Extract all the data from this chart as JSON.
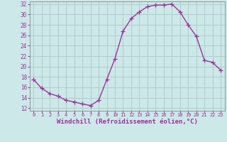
{
  "x": [
    0,
    1,
    2,
    3,
    4,
    5,
    6,
    7,
    8,
    9,
    10,
    11,
    12,
    13,
    14,
    15,
    16,
    17,
    18,
    19,
    20,
    21,
    22,
    23
  ],
  "y": [
    17.5,
    15.8,
    14.8,
    14.3,
    13.5,
    13.2,
    12.8,
    12.5,
    13.5,
    17.5,
    21.5,
    26.8,
    29.2,
    30.5,
    31.5,
    31.8,
    31.8,
    32.0,
    30.5,
    28.0,
    25.8,
    21.2,
    20.8,
    19.3
  ],
  "line_color": "#993399",
  "marker": "+",
  "markersize": 4,
  "linewidth": 1.0,
  "xlabel": "Windchill (Refroidissement éolien,°C)",
  "xlabel_fontsize": 6.5,
  "bg_color": "#cce8e8",
  "grid_color": "#b0cccc",
  "tick_color": "#993399",
  "tick_label_color": "#993399",
  "ylim": [
    11.5,
    32.5
  ],
  "xlim": [
    -0.5,
    23.5
  ],
  "yticks": [
    12,
    14,
    16,
    18,
    20,
    22,
    24,
    26,
    28,
    30,
    32
  ],
  "xticks": [
    0,
    1,
    2,
    3,
    4,
    5,
    6,
    7,
    8,
    9,
    10,
    11,
    12,
    13,
    14,
    15,
    16,
    17,
    18,
    19,
    20,
    21,
    22,
    23
  ],
  "xtick_labels": [
    "0",
    "1",
    "2",
    "3",
    "4",
    "5",
    "6",
    "7",
    "8",
    "9",
    "10",
    "11",
    "12",
    "13",
    "14",
    "15",
    "16",
    "17",
    "18",
    "19",
    "20",
    "21",
    "22",
    "23"
  ],
  "ytick_labels": [
    "12",
    "14",
    "16",
    "18",
    "20",
    "22",
    "24",
    "26",
    "28",
    "30",
    "32"
  ]
}
